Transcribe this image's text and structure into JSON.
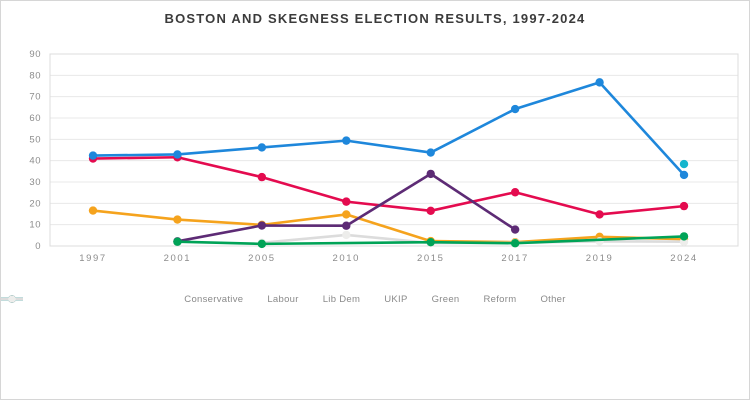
{
  "chart_data": {
    "type": "line",
    "title": "BOSTON AND SKEGNESS ELECTION RESULTS, 1997-2024",
    "categories": [
      "1997",
      "2001",
      "2005",
      "2010",
      "2015",
      "2017",
      "2019",
      "2024"
    ],
    "series": [
      {
        "name": "Lib Dem",
        "color": "#f5a31d",
        "values": [
          16.6,
          12.4,
          9.9,
          14.8,
          2.3,
          1.8,
          4.3,
          3.2
        ]
      },
      {
        "name": "Other",
        "color": "#dcdcdc",
        "marker_fill": "#ededeb",
        "values": [
          null,
          null,
          1.5,
          5.2,
          1.4,
          1.5,
          2.2,
          2.0
        ]
      },
      {
        "name": "Labour",
        "color": "#e40b4f",
        "values": [
          41.0,
          41.6,
          32.3,
          20.8,
          16.5,
          25.2,
          14.8,
          18.7
        ]
      },
      {
        "name": "UKIP",
        "color": "#5d2b75",
        "values": [
          null,
          2.2,
          9.6,
          9.5,
          33.8,
          7.7,
          null,
          null
        ]
      },
      {
        "name": "Green",
        "color": "#00a357",
        "values": [
          null,
          2.0,
          1.0,
          null,
          1.8,
          1.3,
          null,
          4.5
        ]
      },
      {
        "name": "Conservative",
        "color": "#1e87db",
        "values": [
          42.4,
          42.9,
          46.2,
          49.4,
          43.8,
          64.2,
          76.7,
          33.3
        ]
      },
      {
        "name": "Reform",
        "color": "#14b5cd",
        "values": [
          null,
          null,
          null,
          null,
          null,
          null,
          null,
          38.4
        ]
      }
    ],
    "legend_order": [
      "Conservative",
      "Labour",
      "Lib Dem",
      "UKIP",
      "Green",
      "Reform",
      "Other"
    ],
    "ylim": [
      0,
      90
    ],
    "ytick_step": 10,
    "grid": "horizontal",
    "legend_position": "bottom",
    "xlabel": "",
    "ylabel": ""
  },
  "style_colors": {
    "grid_line": "#e8e8e8",
    "plot_border": "#dcdcdc",
    "tick_label": "#8c8c8c",
    "title_text": "#3b3b3b"
  }
}
